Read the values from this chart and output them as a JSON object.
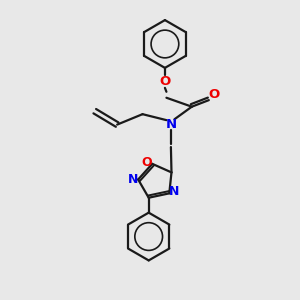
{
  "bg_color": "#e8e8e8",
  "bond_color": "#1a1a1a",
  "nitrogen_color": "#0000ee",
  "oxygen_color": "#ee0000",
  "line_width": 1.6,
  "fig_size": [
    3.0,
    3.0
  ],
  "dpi": 100,
  "xlim": [
    0,
    10
  ],
  "ylim": [
    0,
    10
  ]
}
